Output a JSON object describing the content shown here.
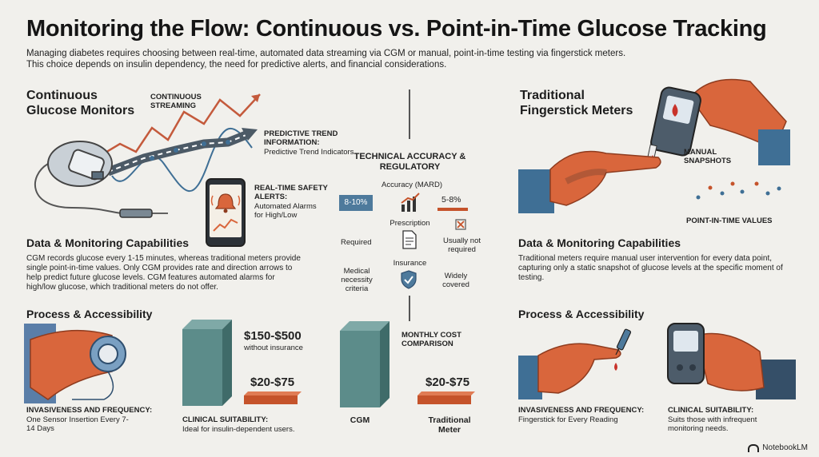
{
  "header": {
    "title": "Monitoring the Flow: Continuous vs. Point-in-Time Glucose Tracking",
    "subtitle": "Managing diabetes requires choosing between real-time, automated data streaming via CGM or manual, point-in-time testing via fingerstick meters. This choice depends on insulin dependency, the need for predictive alerts, and financial considerations."
  },
  "cgm": {
    "heading": "Continuous Glucose Monitors",
    "continuous_streaming": "CONTINUOUS STREAMING",
    "predictive_title": "PREDICTIVE TREND INFORMATION:",
    "predictive_text": "Predictive Trend Indicators",
    "alerts_title": "REAL-TIME SAFETY ALERTS:",
    "alerts_text": "Automated Alarms for High/Low",
    "capabilities_heading": "Data & Monitoring Capabilities",
    "capabilities_text": "CGM records glucose every 1-15 minutes, whereas traditional meters provide single point-in-time values. Only CGM provides rate and direction arrows to help predict future glucose levels. CGM features automated alarms for high/low glucose, which traditional meters do not offer.",
    "process_heading": "Process & Accessibility",
    "invasiveness_title": "INVASIVENESS AND FREQUENCY:",
    "invasiveness_text": "One Sensor Insertion Every 7-14 Days",
    "suitability_title": "CLINICAL SUITABILITY:",
    "suitability_text": "Ideal for insulin-dependent users.",
    "cost_high": "$150-$500",
    "cost_high_note": "without insurance",
    "cost_low": "$20-$75"
  },
  "center": {
    "heading": "TECHNICAL ACCURACY & REGULATORY",
    "accuracy_label": "Accuracy (MARD)",
    "cgm_mard": "8-10%",
    "meter_mard": "5-8%",
    "prescription_label": "Prescription",
    "prescription_cgm": "Required",
    "prescription_meter": "Usually not required",
    "insurance_label": "Insurance",
    "insurance_cgm": "Medical necessity criteria",
    "insurance_meter": "Widely covered",
    "monthly_cost_label": "MONTHLY COST COMPARISON",
    "meter_cost": "$20-$75",
    "bar_cgm_label": "CGM",
    "bar_meter_label": "Traditional Meter"
  },
  "meter": {
    "heading": "Traditional Fingerstick Meters",
    "manual_snapshots": "MANUAL SNAPSHOTS",
    "point_values": "POINT-IN-TIME VALUES",
    "capabilities_heading": "Data & Monitoring Capabilities",
    "capabilities_text": "Traditional meters require manual user intervention for every data point, capturing only a static snapshot of glucose levels at the specific moment of testing.",
    "process_heading": "Process & Accessibility",
    "invasiveness_title": "INVASIVENESS AND FREQUENCY:",
    "invasiveness_text": "Fingerstick for Every Reading",
    "suitability_title": "CLINICAL SUITABILITY:",
    "suitability_text": "Suits those with infrequent monitoring needs."
  },
  "footer": {
    "brand": "NotebookLM"
  },
  "colors": {
    "orange": "#d9663c",
    "teal": "#5c8c8a",
    "blue": "#3f6f95",
    "navy": "#354f68",
    "red": "#c8332b"
  },
  "icons": [
    "cgm-sensor-icon",
    "smartphone-alert-icon",
    "bell-icon",
    "trend-chart-icon",
    "document-icon",
    "shield-check-icon",
    "x-box-icon",
    "glucose-meter-icon",
    "blood-drop-icon",
    "syringe-icon"
  ]
}
